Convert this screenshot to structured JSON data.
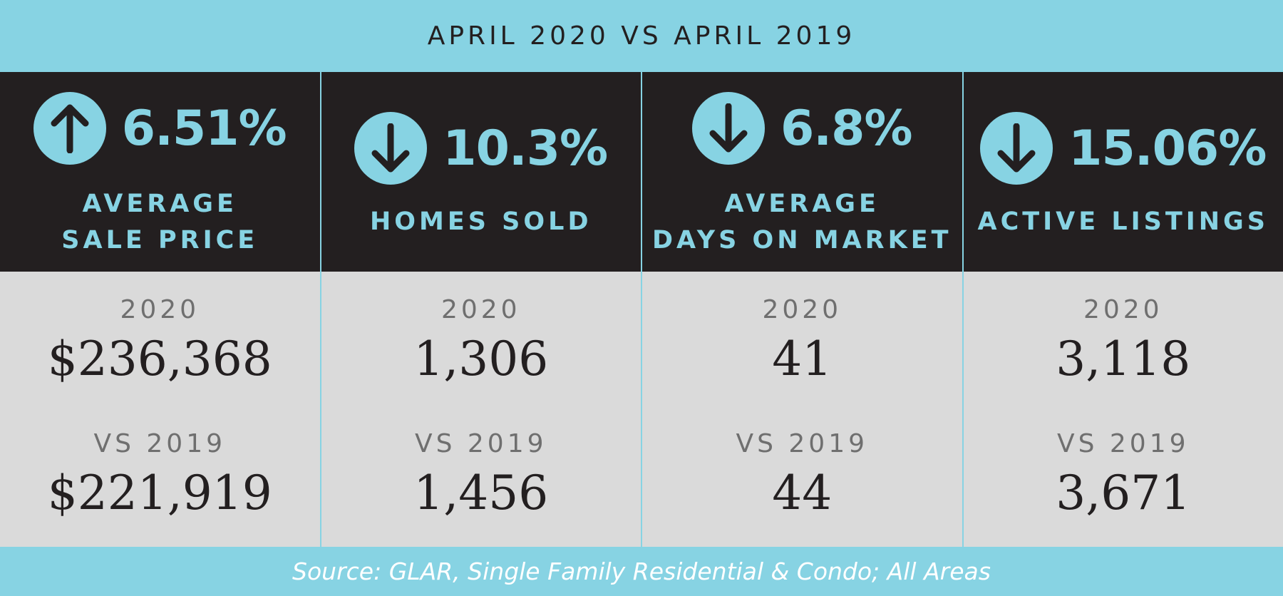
{
  "header": {
    "title": "APRIL 2020 VS APRIL 2019"
  },
  "colors": {
    "accent": "#87d3e3",
    "dark": "#231f20",
    "panel": "#dadada",
    "muted": "#6f6f6f"
  },
  "columns": [
    {
      "direction": "up",
      "icon": "arrow-up-icon",
      "change": "6.51%",
      "label_lines": [
        "AVERAGE",
        "SALE PRICE"
      ],
      "current_year_label": "2020",
      "current_value": "$236,368",
      "previous_year_label": "VS 2019",
      "previous_value": "$221,919"
    },
    {
      "direction": "down",
      "icon": "arrow-down-icon",
      "change": "10.3%",
      "label_lines": [
        "HOMES SOLD"
      ],
      "current_year_label": "2020",
      "current_value": "1,306",
      "previous_year_label": "VS 2019",
      "previous_value": "1,456"
    },
    {
      "direction": "down",
      "icon": "arrow-down-icon",
      "change": "6.8%",
      "label_lines": [
        "AVERAGE",
        "DAYS ON MARKET"
      ],
      "current_year_label": "2020",
      "current_value": "41",
      "previous_year_label": "VS 2019",
      "previous_value": "44"
    },
    {
      "direction": "down",
      "icon": "arrow-down-icon",
      "change": "15.06%",
      "label_lines": [
        "ACTIVE LISTINGS"
      ],
      "current_year_label": "2020",
      "current_value": "3,118",
      "previous_year_label": "VS 2019",
      "previous_value": "3,671"
    }
  ],
  "footer": {
    "source": "Source: GLAR, Single Family Residential & Condo; All Areas"
  }
}
